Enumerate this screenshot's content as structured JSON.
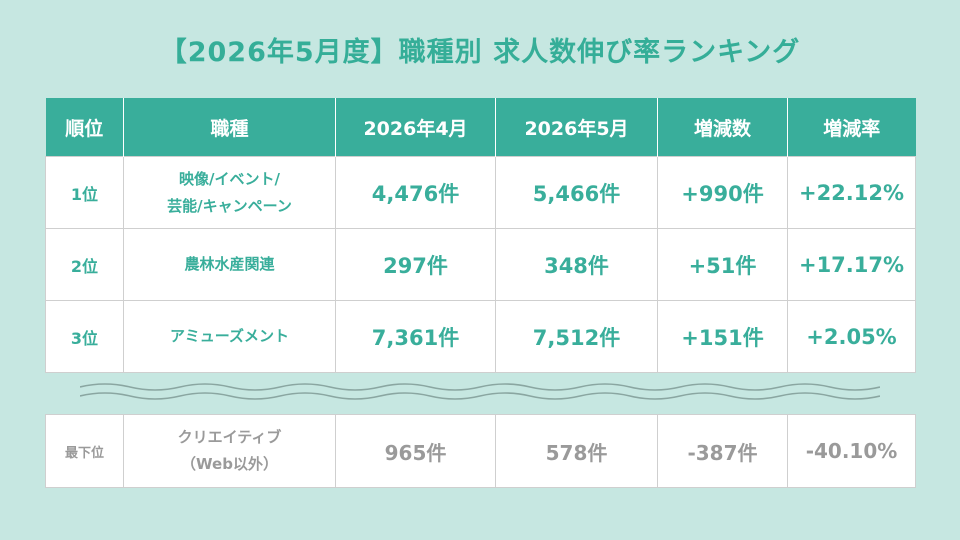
{
  "title": "【2026年5月度】職種別 求人数伸び率ランキング",
  "headers": [
    "順位",
    "職種",
    "2026年4月",
    "2026年5月",
    "増減数",
    "増減率"
  ],
  "rows": [
    {
      "rank": "1位",
      "job_line1": "映像/イベント/",
      "job_line2": "芸能/キャンペーン",
      "apr": "4,476件",
      "may": "5,466件",
      "diff": "+990件",
      "rate": "+22.12%"
    },
    {
      "rank": "2位",
      "job_line1": "農林水産関連",
      "job_line2": "",
      "apr": "297件",
      "may": "348件",
      "diff": "+51件",
      "rate": "+17.17%"
    },
    {
      "rank": "3位",
      "job_line1": "アミューズメント",
      "job_line2": "",
      "apr": "7,361件",
      "may": "7,512件",
      "diff": "+151件",
      "rate": "+2.05%"
    }
  ],
  "bottom": {
    "rank": "最下位",
    "job_line1": "クリエイティブ",
    "job_line2": "（Web以外）",
    "apr": "965件",
    "may": "578件",
    "diff": "-387件",
    "rate": "-40.10%"
  },
  "colors": {
    "accent": "#39ae9b",
    "background": "#c6e7e1",
    "muted": "#9a9a9a"
  }
}
